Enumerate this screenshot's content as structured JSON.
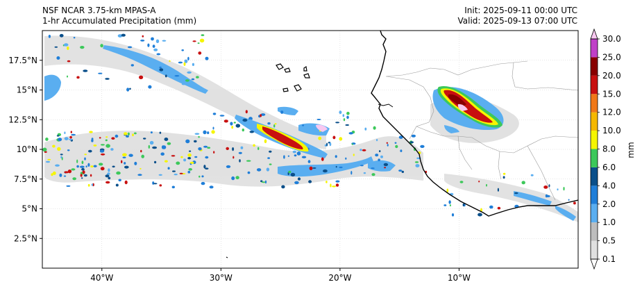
{
  "title": {
    "left_line1": "NSF NCAR 3.75-km MPAS-A",
    "left_line2": "1-hr Accumulated Precipitation (mm)",
    "right_line1": "Init: 2025-09-11 00:00 UTC",
    "right_line2": "Valid: 2025-09-13 07:00 UTC"
  },
  "map": {
    "lon_range": [
      -45,
      0
    ],
    "lat_range": [
      0,
      20
    ],
    "lon_ticks": [
      {
        "value": -40,
        "label": "40°W"
      },
      {
        "value": -30,
        "label": "30°W"
      },
      {
        "value": -20,
        "label": "20°W"
      },
      {
        "value": -10,
        "label": "10°W"
      }
    ],
    "lat_ticks": [
      {
        "value": 2.5,
        "label": "2.5°N"
      },
      {
        "value": 5,
        "label": "5°N"
      },
      {
        "value": 7.5,
        "label": "7.5°N"
      },
      {
        "value": 10,
        "label": "10°N"
      },
      {
        "value": 12.5,
        "label": "12.5°N"
      },
      {
        "value": 15,
        "label": "15°N"
      },
      {
        "value": 17.5,
        "label": "17.5°N"
      }
    ]
  },
  "colorbar": {
    "unit": "mm",
    "levels": [
      {
        "label": "0.1",
        "color": "#e0e0e0"
      },
      {
        "label": "0.5",
        "color": "#bdbdbd"
      },
      {
        "label": "1.0",
        "color": "#5aaef0"
      },
      {
        "label": "2.0",
        "color": "#1f7ed8"
      },
      {
        "label": "4.0",
        "color": "#0a4f8a"
      },
      {
        "label": "6.0",
        "color": "#3cc85a"
      },
      {
        "label": "8.0",
        "color": "#f5f500"
      },
      {
        "label": "10.0",
        "color": "#f5b800"
      },
      {
        "label": "12.0",
        "color": "#f07818"
      },
      {
        "label": "15.0",
        "color": "#c81010"
      },
      {
        "label": "20.0",
        "color": "#880000"
      },
      {
        "label": "25.0",
        "color": "#c040c8"
      },
      {
        "label": "30.0",
        "color": "#f8c8f0"
      }
    ]
  }
}
